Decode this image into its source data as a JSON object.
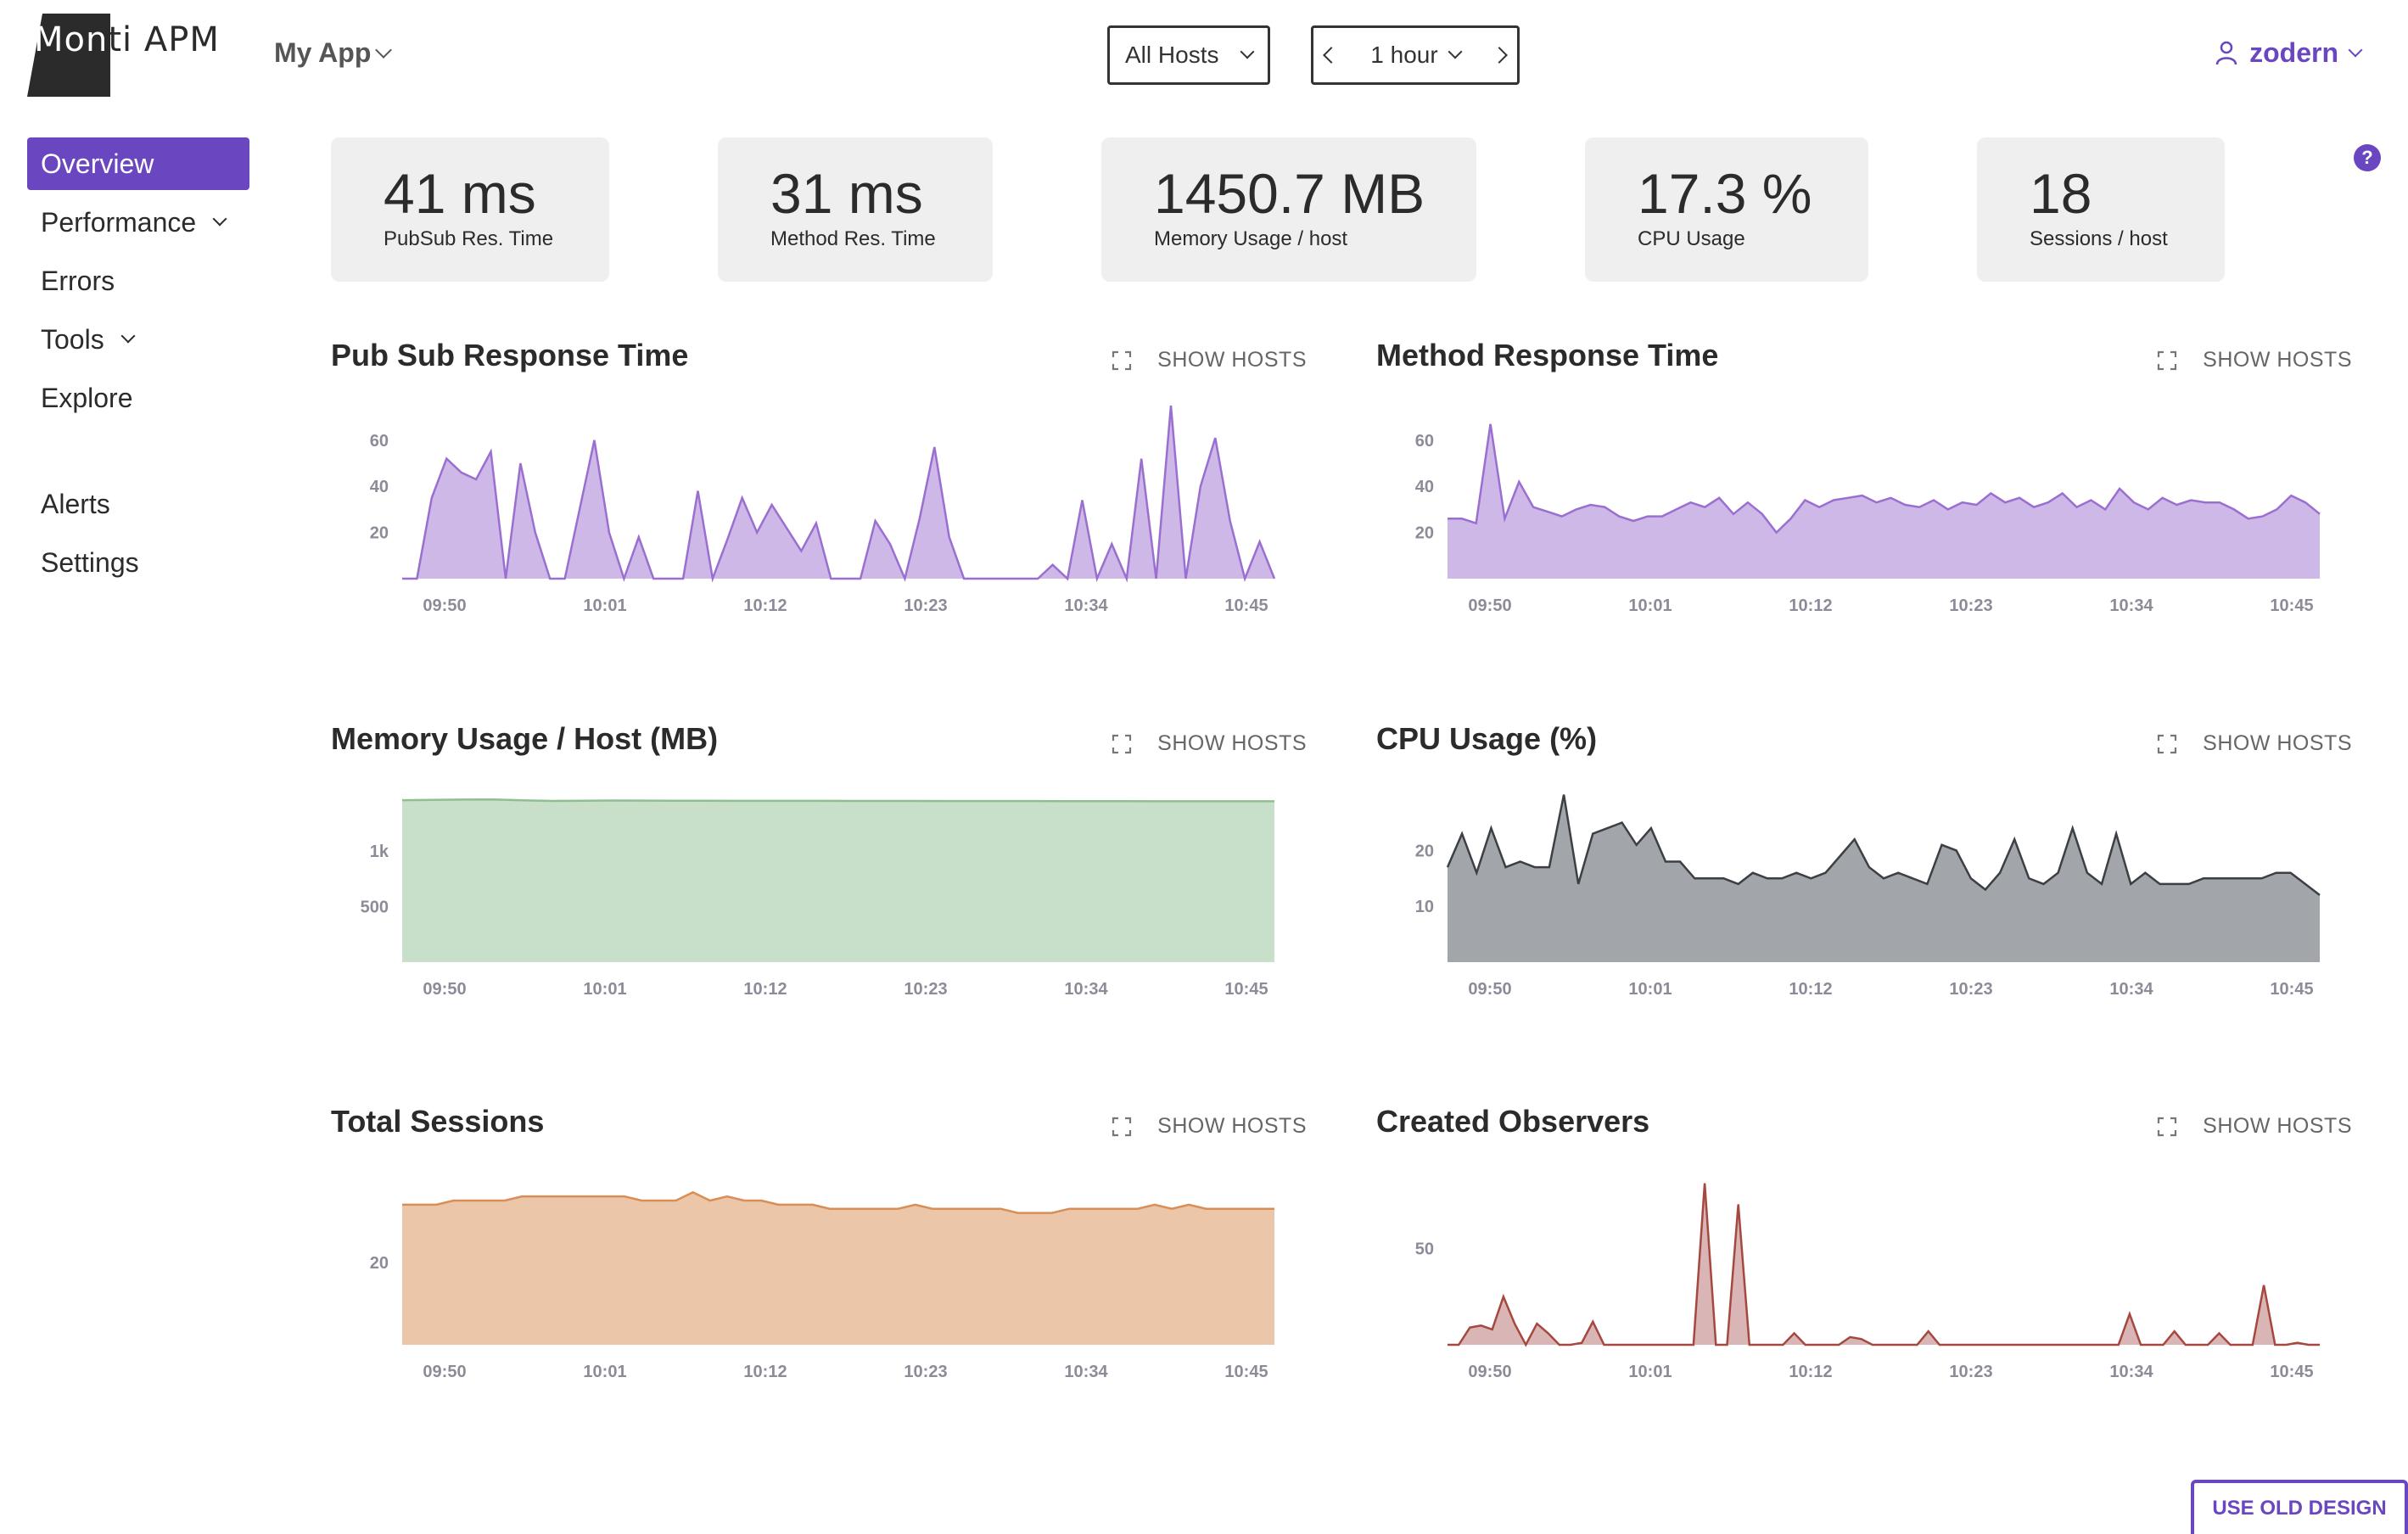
{
  "header": {
    "logo_first": "Mon",
    "logo_rest": "ti APM",
    "app_name": "My App",
    "hosts_filter": "All Hosts",
    "time_range": "1 hour",
    "user": "zodern",
    "help": "?"
  },
  "sidebar": {
    "items": [
      {
        "label": "Overview",
        "active": true
      },
      {
        "label": "Performance",
        "dropdown": true
      },
      {
        "label": "Errors"
      },
      {
        "label": "Tools",
        "dropdown": true
      },
      {
        "label": "Explore"
      },
      {
        "label": "Alerts"
      },
      {
        "label": "Settings"
      }
    ]
  },
  "stats": [
    {
      "value": "41 ms",
      "label": "PubSub Res. Time"
    },
    {
      "value": "31 ms",
      "label": "Method Res. Time"
    },
    {
      "value": "1450.7 MB",
      "label": "Memory Usage / host"
    },
    {
      "value": "17.3 %",
      "label": "CPU Usage"
    },
    {
      "value": "18",
      "label": "Sessions / host"
    }
  ],
  "show_hosts_label": "SHOW HOSTS",
  "old_design_label": "USE OLD DESIGN",
  "colors": {
    "accent": "#6b46c1",
    "purple_fill": "#cdb8e8",
    "purple_line": "#9a6fd0",
    "green_fill": "#c8dfc9",
    "green_line": "#8fbf91",
    "gray_fill": "#a2a6ab",
    "gray_line": "#3c3f44",
    "orange_fill": "#ebc6a8",
    "orange_line": "#d98e55",
    "red_fill": "#d9b5b5",
    "red_line": "#a5483f"
  },
  "chart_data": [
    {
      "type": "area",
      "title": "Pub Sub Response Time",
      "x_ticks": [
        "09:50",
        "10:01",
        "10:12",
        "10:23",
        "10:34",
        "10:45"
      ],
      "y_ticks": [
        20,
        40,
        60
      ],
      "ylim": [
        0,
        75
      ],
      "values": [
        0,
        0,
        35,
        52,
        46,
        43,
        55,
        0,
        50,
        20,
        0,
        0,
        30,
        60,
        20,
        0,
        18,
        0,
        0,
        0,
        38,
        0,
        17,
        35,
        20,
        32,
        22,
        12,
        24,
        0,
        0,
        0,
        25,
        15,
        0,
        26,
        57,
        18,
        0,
        0,
        0,
        0,
        0,
        0,
        6,
        0,
        34,
        0,
        15,
        0,
        52,
        0,
        75,
        0,
        40,
        61,
        25,
        0,
        16,
        0
      ]
    },
    {
      "type": "area",
      "title": "Method Response Time",
      "x_ticks": [
        "09:50",
        "10:01",
        "10:12",
        "10:23",
        "10:34",
        "10:45"
      ],
      "y_ticks": [
        20,
        40,
        60
      ],
      "ylim": [
        0,
        75
      ],
      "values": [
        26,
        26,
        24,
        67,
        26,
        42,
        31,
        29,
        27,
        30,
        32,
        31,
        27,
        25,
        27,
        27,
        30,
        33,
        31,
        35,
        28,
        33,
        28,
        20,
        26,
        34,
        31,
        34,
        35,
        36,
        33,
        35,
        32,
        31,
        34,
        30,
        33,
        32,
        37,
        33,
        35,
        31,
        33,
        37,
        31,
        34,
        30,
        39,
        33,
        30,
        35,
        32,
        34,
        33,
        33,
        30,
        26,
        27,
        30,
        36,
        33,
        28
      ]
    },
    {
      "type": "area",
      "title": "Memory Usage / Host (MB)",
      "x_ticks": [
        "09:50",
        "10:01",
        "10:12",
        "10:23",
        "10:34",
        "10:45"
      ],
      "y_ticks": [
        "500",
        "1k"
      ],
      "y_tick_values": [
        500,
        1000
      ],
      "ylim": [
        0,
        1560
      ],
      "values": [
        1460,
        1462,
        1465,
        1466,
        1458,
        1453,
        1455,
        1457,
        1456,
        1455,
        1455,
        1454,
        1454,
        1454,
        1454,
        1453,
        1453,
        1453,
        1452,
        1452,
        1452,
        1452,
        1451,
        1451,
        1451,
        1450,
        1450,
        1450,
        1450,
        1450
      ]
    },
    {
      "type": "area",
      "title": "CPU Usage (%)",
      "x_ticks": [
        "09:50",
        "10:01",
        "10:12",
        "10:23",
        "10:34",
        "10:45"
      ],
      "y_ticks": [
        10,
        20
      ],
      "ylim": [
        0,
        31
      ],
      "values": [
        17,
        23,
        16,
        24,
        17,
        18,
        17,
        17,
        30,
        14,
        23,
        24,
        25,
        21,
        24,
        18,
        18,
        15,
        15,
        15,
        14,
        16,
        15,
        15,
        16,
        15,
        16,
        19,
        22,
        17,
        15,
        16,
        15,
        14,
        21,
        20,
        15,
        13,
        16,
        22,
        15,
        14,
        16,
        24,
        16,
        14,
        23,
        14,
        16,
        14,
        14,
        14,
        15,
        15,
        15,
        15,
        15,
        16,
        16,
        14,
        12
      ]
    },
    {
      "type": "area",
      "title": "Total Sessions",
      "x_ticks": [
        "09:50",
        "10:01",
        "10:12",
        "10:23",
        "10:34",
        "10:45"
      ],
      "y_ticks": [
        20
      ],
      "ylim": [
        0,
        42
      ],
      "values": [
        34,
        34,
        34,
        35,
        35,
        35,
        35,
        36,
        36,
        36,
        36,
        36,
        36,
        36,
        35,
        35,
        35,
        37,
        35,
        36,
        35,
        35,
        34,
        34,
        34,
        33,
        33,
        33,
        33,
        33,
        34,
        33,
        33,
        33,
        33,
        33,
        32,
        32,
        32,
        33,
        33,
        33,
        33,
        33,
        34,
        33,
        34,
        33,
        33,
        33,
        33,
        33
      ]
    },
    {
      "type": "area",
      "title": "Created Observers",
      "x_ticks": [
        "09:50",
        "10:01",
        "10:12",
        "10:23",
        "10:34",
        "10:45"
      ],
      "y_ticks": [
        50
      ],
      "ylim": [
        0,
        90
      ],
      "values": [
        0,
        0,
        9,
        10,
        8,
        25,
        11,
        0,
        11,
        6,
        0,
        0,
        1,
        12,
        0,
        0,
        0,
        0,
        0,
        0,
        0,
        0,
        0,
        84,
        0,
        0,
        73,
        0,
        0,
        0,
        0,
        6,
        0,
        0,
        0,
        0,
        4,
        3,
        0,
        0,
        0,
        0,
        0,
        7,
        0,
        0,
        0,
        0,
        0,
        0,
        0,
        0,
        0,
        0,
        0,
        0,
        0,
        0,
        0,
        0,
        0,
        16,
        0,
        0,
        0,
        7,
        0,
        0,
        0,
        6,
        0,
        0,
        0,
        31,
        0,
        0,
        1,
        0,
        0
      ]
    }
  ]
}
